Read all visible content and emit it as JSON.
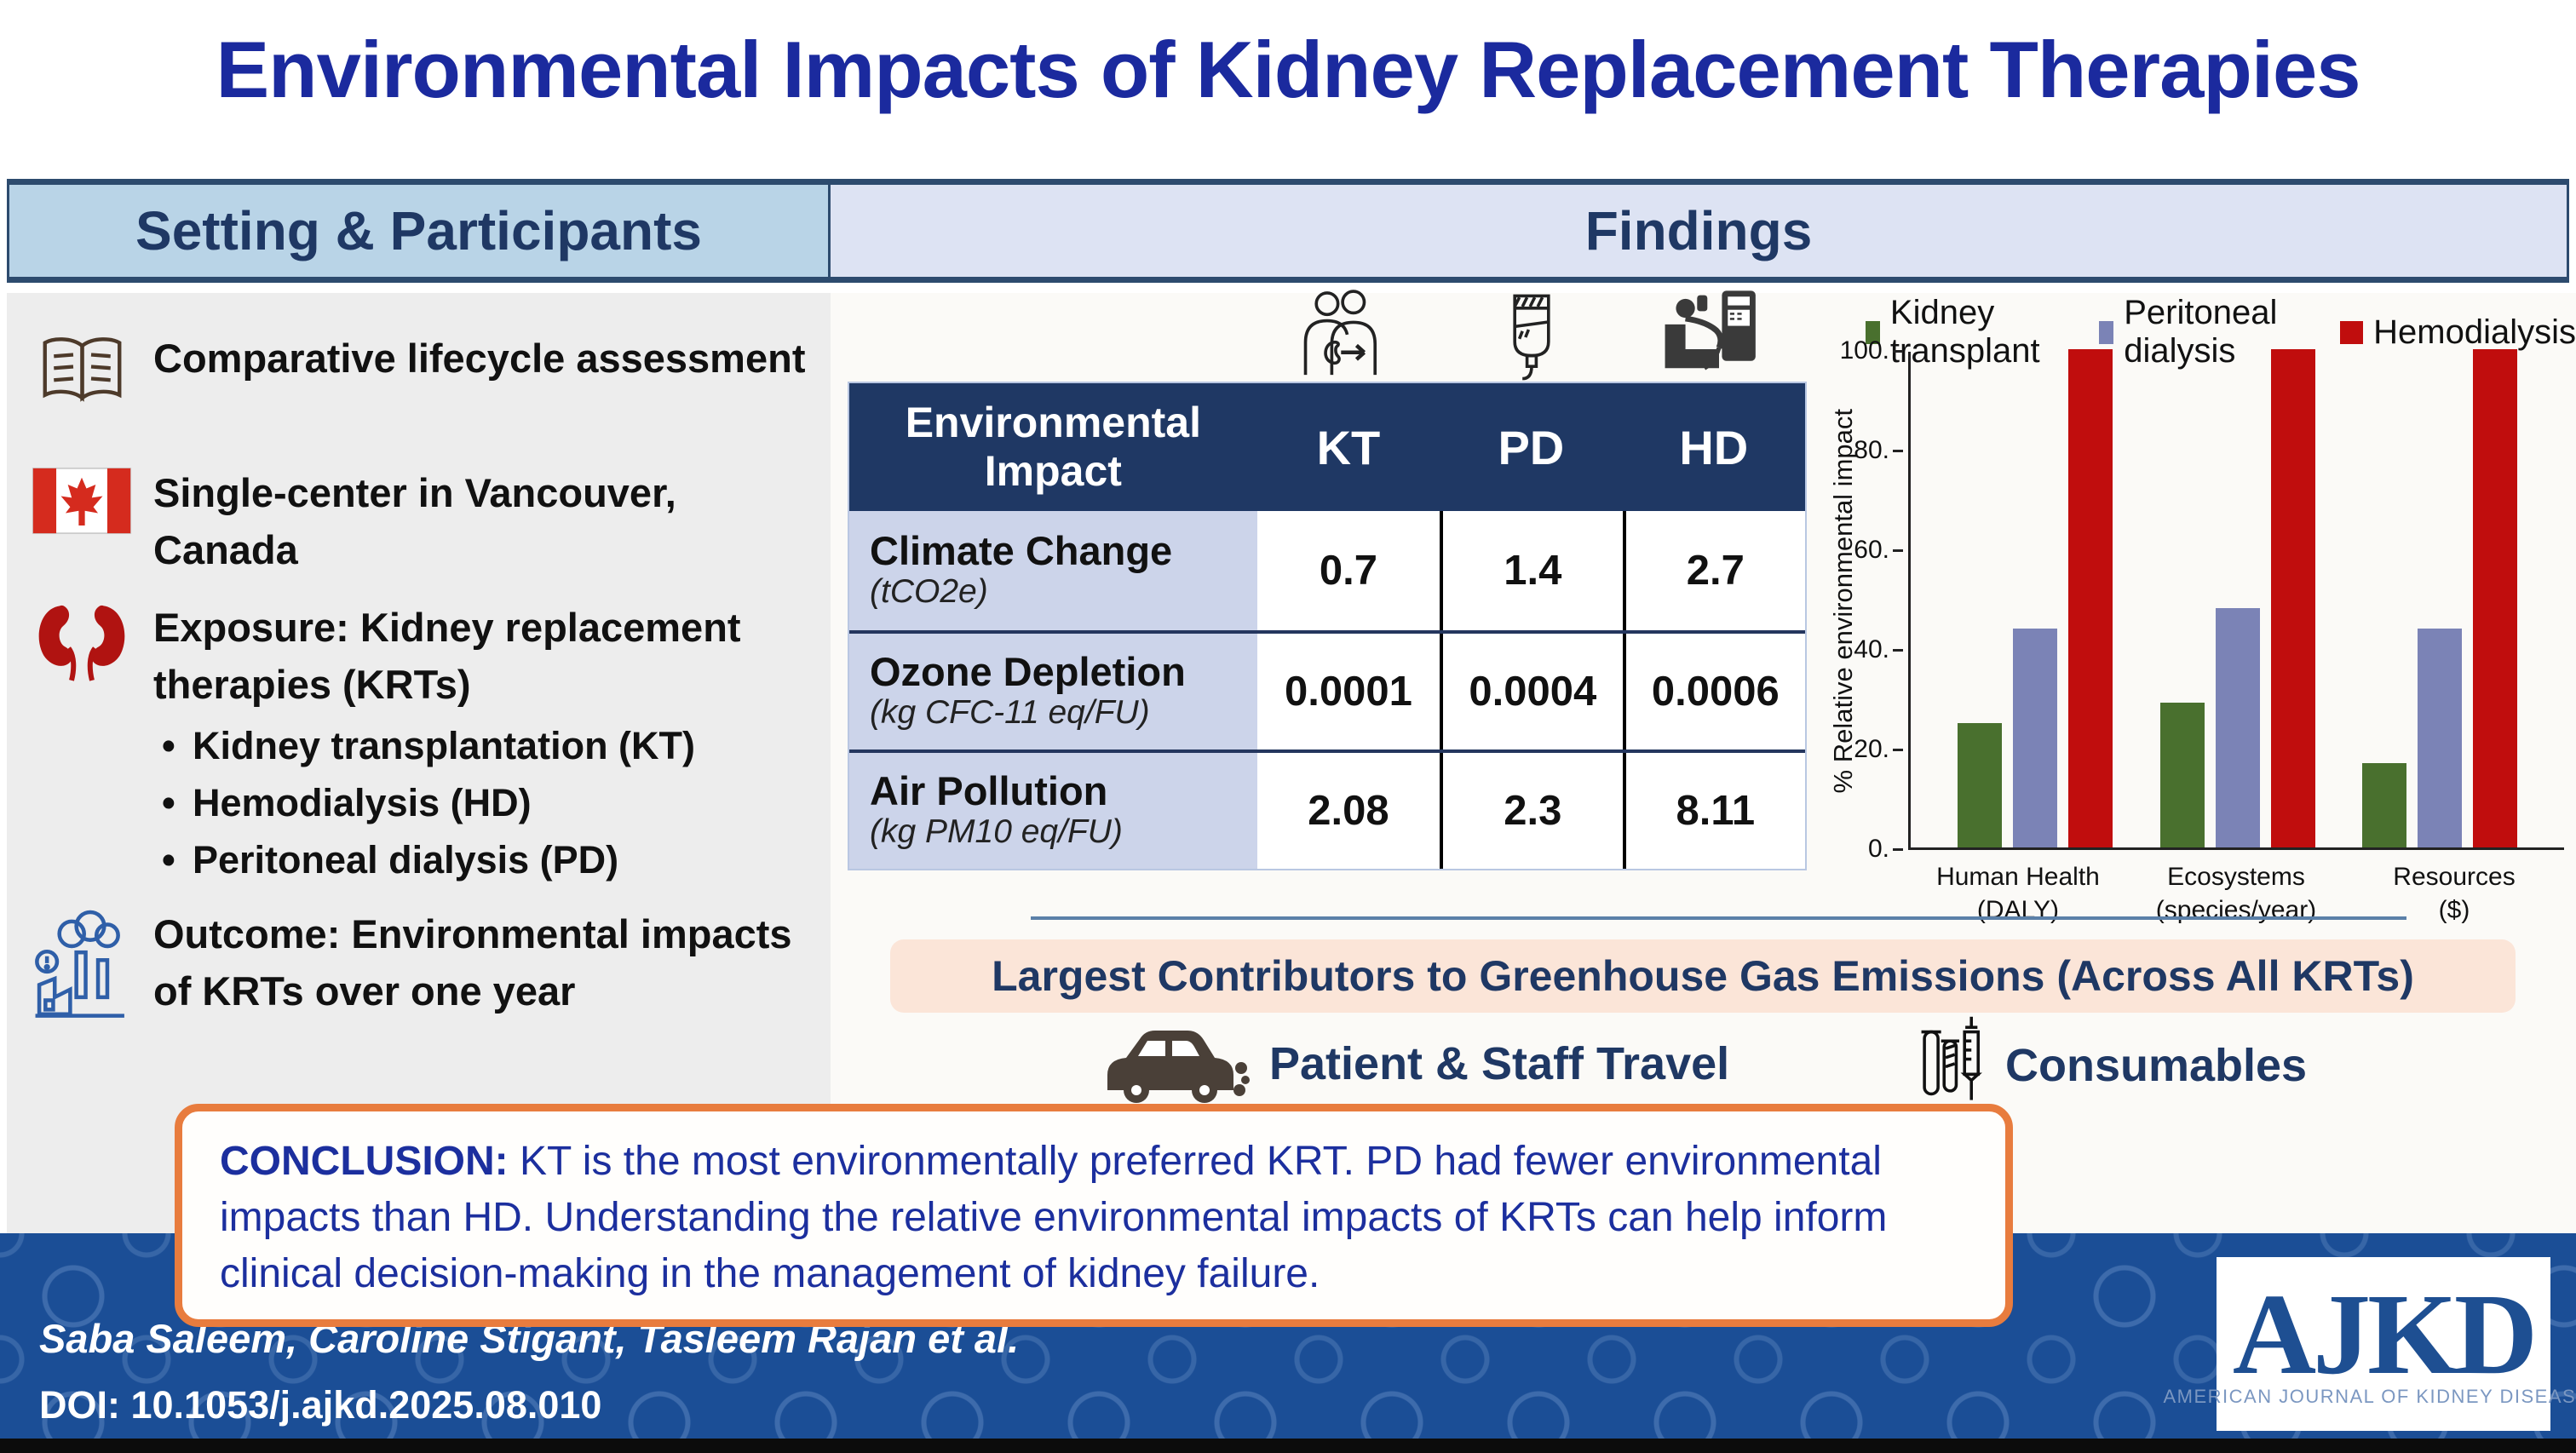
{
  "page": {
    "title": "Environmental Impacts of Kidney Replacement Therapies"
  },
  "section_headers": {
    "left": "Setting & Participants",
    "right": "Findings"
  },
  "sidebar": {
    "items": [
      {
        "icon": "open-book-icon",
        "text": "Comparative lifecycle assessment"
      },
      {
        "icon": "canada-flag-icon",
        "text": "Single-center in Vancouver, Canada"
      },
      {
        "icon": "kidneys-icon",
        "text": "Exposure: Kidney replacement therapies (KRTs)",
        "bullets": [
          "Kidney transplantation (KT)",
          "Hemodialysis (HD)",
          "Peritoneal dialysis (PD)"
        ]
      },
      {
        "icon": "pollution-factory-icon",
        "text": "Outcome: Environmental impacts of KRTs over one year"
      }
    ]
  },
  "findings": {
    "table": {
      "columns": {
        "label": "Environmental Impact",
        "kt": "KT",
        "pd": "PD",
        "hd": "HD"
      },
      "col_icons": [
        "kidney-transplant-icon",
        "dialysate-bag-icon",
        "hemodialysis-machine-icon"
      ],
      "rows": [
        {
          "name": "Climate Change",
          "unit": "(tCO2e)",
          "kt": "0.7",
          "pd": "1.4",
          "hd": "2.7"
        },
        {
          "name": "Ozone Depletion",
          "unit": "(kg CFC-11 eq/FU)",
          "kt": "0.0001",
          "pd": "0.0004",
          "hd": "0.0006"
        },
        {
          "name": "Air Pollution",
          "unit": "(kg PM10 eq/FU)",
          "kt": "2.08",
          "pd": "2.3",
          "hd": "8.11"
        }
      ]
    },
    "contributors": {
      "banner": "Largest Contributors to Greenhouse Gas Emissions (Across All KRTs)",
      "items": [
        {
          "icon": "car-icon",
          "label": "Patient & Staff Travel"
        },
        {
          "icon": "consumables-icon",
          "label": "Consumables"
        }
      ]
    }
  },
  "chart_data": {
    "type": "bar",
    "title": "",
    "xlabel": "",
    "ylabel": "% Relative environmental impact",
    "ylim": [
      0,
      100
    ],
    "yticks": [
      "100.",
      "80.",
      "60.",
      "40.",
      "20.",
      "0."
    ],
    "grid": false,
    "legend_position": "top",
    "categories": [
      {
        "label": "Human Health",
        "sub": "(DALY)"
      },
      {
        "label": "Ecosystems",
        "sub": "(species/year)"
      },
      {
        "label": "Resources",
        "sub": "($)"
      }
    ],
    "series": [
      {
        "name": "Kidney transplant",
        "color": "#49702e",
        "values": [
          25,
          29,
          17
        ]
      },
      {
        "name": "Peritoneal dialysis",
        "color": "#7b83b6",
        "values": [
          44,
          48,
          44
        ]
      },
      {
        "name": "Hemodialysis",
        "color": "#c00d0d",
        "values": [
          100,
          100,
          100
        ]
      }
    ]
  },
  "conclusion": {
    "label": "CONCLUSION:",
    "text": " KT is the most environmentally preferred KRT. PD had fewer environmental impacts than HD. Understanding the relative environmental impacts of KRTs can help inform clinical decision-making in the management of kidney failure."
  },
  "footer": {
    "authors": "Saba Saleem, Caroline Stigant, Tasleem Rajan et al.",
    "doi": "DOI: 10.1053/j.ajkd.2025.08.010",
    "logo_text": "AJKD",
    "logo_subtext": "AMERICAN JOURNAL OF KIDNEY DISEASES"
  },
  "colors": {
    "title_blue": "#1b2a9e",
    "navy": "#1f3864",
    "band_left_bg": "#b9d4e7",
    "band_right_bg": "#dde3f3",
    "sidebar_bg": "#ededed",
    "table_header_bg": "#1f3864",
    "row_label_bg": "#ccd4ea",
    "banner_bg": "#fbe5d8",
    "conclusion_border": "#e87c3e",
    "footer_bg": "#1b4e96",
    "kt_green": "#49702e",
    "pd_purple": "#7b83b6",
    "hd_red": "#c00d0d"
  }
}
